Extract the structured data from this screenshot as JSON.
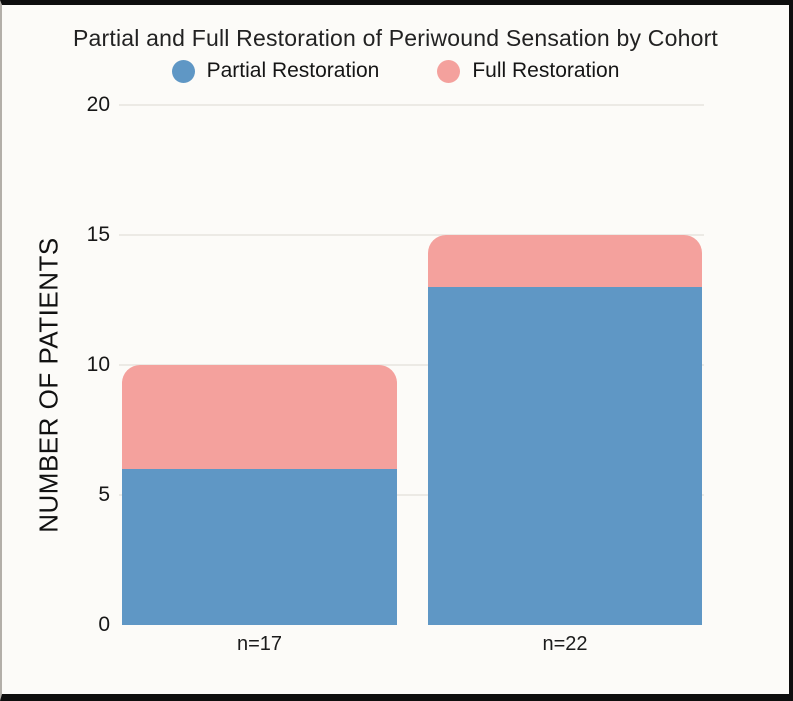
{
  "chart_data": {
    "type": "bar",
    "stacked": true,
    "title": "Partial and Full Restoration of Periwound Sensation by Cohort",
    "categories": [
      "n=17",
      "n=22"
    ],
    "series": [
      {
        "name": "Partial Restoration",
        "color": "#5f97c5",
        "values": [
          6,
          13
        ]
      },
      {
        "name": "Full Restoration",
        "color": "#f4a19d",
        "values": [
          4,
          2
        ]
      }
    ],
    "xlabel": "",
    "ylabel": "NUMBER OF PATIENTS",
    "ylim": [
      0,
      20
    ],
    "yticks": [
      0,
      5,
      10,
      15,
      20
    ],
    "grid": true,
    "legend_position": "top",
    "text_color": "#1c1c1c",
    "grid_color": "#eceae5",
    "background_color": "#fcfbf8"
  }
}
